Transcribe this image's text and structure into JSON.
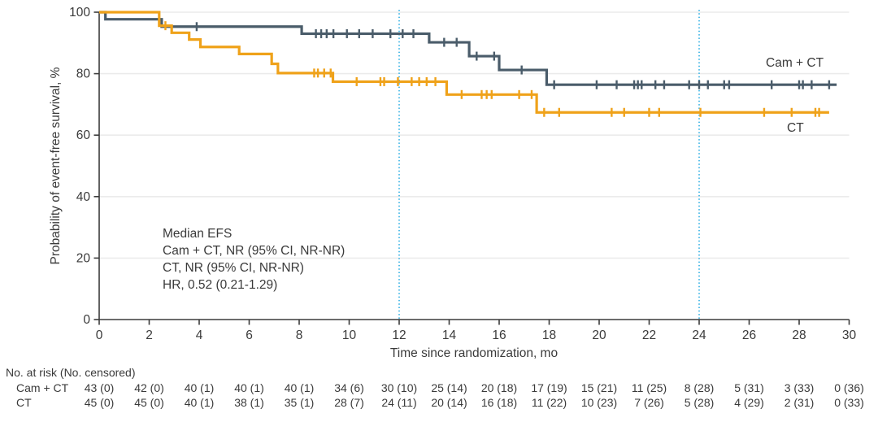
{
  "figure": {
    "background": "#ffffff",
    "text_color": "#3a3a3a"
  },
  "chart_data": {
    "type": "line",
    "subtype": "kaplan-meier-step",
    "title": "",
    "xlabel": "Time since randomization, mo",
    "ylabel": "Probability of event-free survival, %",
    "xlim": [
      0,
      30
    ],
    "ylim": [
      0,
      100
    ],
    "xticks": [
      0,
      2,
      4,
      6,
      8,
      10,
      12,
      14,
      16,
      18,
      20,
      22,
      24,
      26,
      28,
      30
    ],
    "yticks": [
      0,
      20,
      40,
      60,
      80,
      100
    ],
    "grid": "horizontal-light",
    "grid_color": "#ebebeb",
    "axis_color": "#3c3c3c",
    "reference_lines": {
      "x_months": [
        12,
        24
      ],
      "color": "#41b6e6",
      "style": "dotted"
    },
    "legend_position": "labels-near-line-end",
    "series": [
      {
        "name": "Cam + CT",
        "color": "#4A5C6A",
        "steps_month_percent": [
          [
            0,
            100
          ],
          [
            0.25,
            97.7
          ],
          [
            2.5,
            95.3
          ],
          [
            8.1,
            93.0
          ],
          [
            13.2,
            90.2
          ],
          [
            14.8,
            85.7
          ],
          [
            16.0,
            81.2
          ],
          [
            17.9,
            76.4
          ]
        ],
        "end_month": 29.5,
        "censor_months": [
          3.9,
          8.67,
          8.88,
          9.1,
          9.37,
          9.91,
          10.4,
          10.94,
          11.65,
          12.14,
          12.57,
          13.8,
          14.3,
          15.1,
          15.8,
          16.9,
          18.2,
          19.9,
          20.7,
          21.4,
          21.55,
          21.7,
          22.25,
          22.6,
          23.6,
          24.0,
          24.35,
          25.0,
          25.2,
          26.9,
          28.0,
          28.15,
          28.5,
          29.2
        ]
      },
      {
        "name": "CT",
        "color": "#EFA21A",
        "steps_month_percent": [
          [
            0,
            100
          ],
          [
            2.4,
            95.6
          ],
          [
            2.9,
            93.3
          ],
          [
            3.6,
            91.1
          ],
          [
            4.05,
            88.7
          ],
          [
            5.6,
            86.4
          ],
          [
            6.9,
            83.2
          ],
          [
            7.15,
            80.2
          ],
          [
            9.35,
            77.4
          ],
          [
            13.9,
            73.2
          ],
          [
            17.5,
            67.4
          ]
        ],
        "end_month": 29.2,
        "censor_months": [
          2.65,
          8.6,
          8.75,
          9.0,
          9.26,
          10.3,
          11.25,
          11.4,
          11.95,
          12.5,
          12.8,
          13.1,
          13.45,
          14.5,
          15.3,
          15.5,
          15.7,
          16.8,
          17.3,
          17.8,
          18.4,
          20.5,
          21.0,
          22.0,
          22.4,
          24.05,
          26.6,
          27.7,
          28.65,
          28.8
        ]
      }
    ]
  },
  "annotation": {
    "lines": [
      "Median EFS",
      "Cam + CT, NR (95% CI, NR-NR)",
      "CT, NR (95% CI, NR-NR)",
      "HR, 0.52 (0.21-1.29)"
    ]
  },
  "risk_table": {
    "header": "No. at risk (No. censored)",
    "times": [
      0,
      2,
      4,
      6,
      8,
      10,
      12,
      14,
      16,
      18,
      20,
      22,
      24,
      26,
      28,
      30
    ],
    "rows": [
      {
        "label": "Cam + CT",
        "values": [
          "43 (0)",
          "42 (0)",
          "40 (1)",
          "40 (1)",
          "40 (1)",
          "34 (6)",
          "30 (10)",
          "25 (14)",
          "20 (18)",
          "17 (19)",
          "15 (21)",
          "11 (25)",
          "8 (28)",
          "5 (31)",
          "3 (33)",
          "0 (36)"
        ]
      },
      {
        "label": "CT",
        "values": [
          "45 (0)",
          "45 (0)",
          "40 (1)",
          "38 (1)",
          "35 (1)",
          "28 (7)",
          "24 (11)",
          "20 (14)",
          "16 (18)",
          "11 (22)",
          "10 (23)",
          "7 (26)",
          "5 (28)",
          "4 (29)",
          "2 (31)",
          "0 (33)"
        ]
      }
    ]
  }
}
